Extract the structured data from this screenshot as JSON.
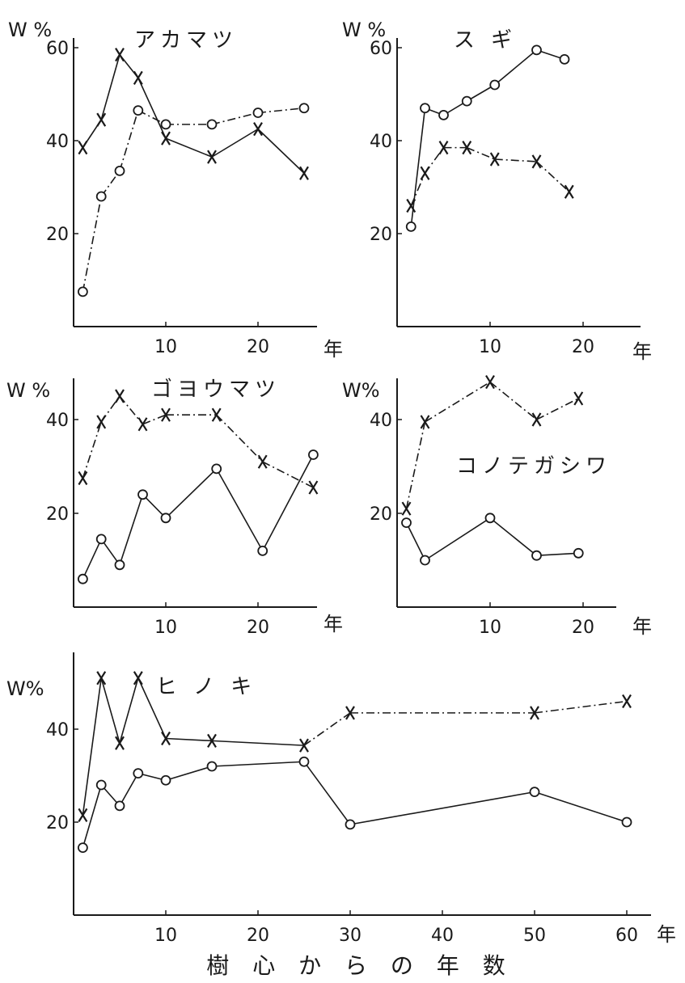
{
  "figure": {
    "xlabel": "樹 心 か ら の 年 数",
    "line_color": "#1a1a1a",
    "background": "#ffffff"
  },
  "chart_data": [
    {
      "type": "line",
      "title": "アカマツ",
      "ylabel": "W %",
      "x_unit": "年",
      "xlim": [
        0,
        28
      ],
      "ylim": [
        0,
        62
      ],
      "xticks": [
        10,
        20
      ],
      "yticks": [
        20,
        40,
        60
      ],
      "series": [
        {
          "marker": "x",
          "line": "solid",
          "x": [
            1,
            3,
            5,
            7,
            10,
            15,
            20,
            25
          ],
          "y": [
            38.5,
            44.5,
            58.5,
            53.5,
            40.5,
            36.5,
            42.5,
            33
          ]
        },
        {
          "marker": "o",
          "line": "dashdot",
          "x": [
            1,
            3,
            5,
            7,
            10,
            15,
            20,
            25
          ],
          "y": [
            7.5,
            28,
            33.5,
            46.5,
            43.5,
            43.5,
            46,
            47
          ]
        }
      ]
    },
    {
      "type": "line",
      "title": "ス ギ",
      "ylabel": "W %",
      "x_unit": "年",
      "xlim": [
        0,
        28
      ],
      "ylim": [
        0,
        62
      ],
      "xticks": [
        10,
        20
      ],
      "yticks": [
        20,
        40,
        60
      ],
      "series": [
        {
          "marker": "o",
          "line": "solid",
          "x": [
            1.5,
            3,
            5,
            7.5,
            10.5,
            15,
            18
          ],
          "y": [
            21.5,
            47,
            45.5,
            48.5,
            52,
            59.5,
            57.5
          ]
        },
        {
          "marker": "x",
          "line": "dashdot",
          "x": [
            1.5,
            3,
            5,
            7.5,
            10.5,
            15,
            18.5
          ],
          "y": [
            26,
            33,
            38.5,
            38.5,
            36,
            35.5,
            29
          ]
        }
      ]
    },
    {
      "type": "line",
      "title": "ゴヨウマツ",
      "ylabel": "W %",
      "x_unit": "年",
      "xlim": [
        0,
        28
      ],
      "ylim": [
        0,
        49
      ],
      "xticks": [
        10,
        20
      ],
      "yticks": [
        20,
        40
      ],
      "series": [
        {
          "marker": "x",
          "line": "dashdot",
          "x": [
            1,
            3,
            5,
            7.5,
            10,
            15.5,
            20.5,
            26
          ],
          "y": [
            27.5,
            39.5,
            45,
            39,
            41,
            41,
            31,
            25.5
          ]
        },
        {
          "marker": "o",
          "line": "solid",
          "x": [
            1,
            3,
            5,
            7.5,
            10,
            15.5,
            20.5,
            26
          ],
          "y": [
            6,
            14.5,
            9,
            24,
            19,
            29.5,
            12,
            32.5
          ]
        }
      ]
    },
    {
      "type": "line",
      "title": "コノテガシワ",
      "ylabel": "W%",
      "x_unit": "年",
      "xlim": [
        0,
        25
      ],
      "ylim": [
        0,
        49
      ],
      "xticks": [
        10,
        20
      ],
      "yticks": [
        20,
        40
      ],
      "series": [
        {
          "marker": "x",
          "line": "dashdot",
          "x": [
            1,
            3,
            10,
            15,
            19.5
          ],
          "y": [
            21,
            39.5,
            48,
            40,
            44.5
          ]
        },
        {
          "marker": "o",
          "line": "solid",
          "x": [
            1,
            3,
            10,
            15,
            19.5
          ],
          "y": [
            18,
            10,
            19,
            11,
            11.5
          ]
        }
      ]
    },
    {
      "type": "line",
      "title": "ヒ ノ キ",
      "ylabel": "W%",
      "x_unit": "年",
      "xlim": [
        0,
        63
      ],
      "ylim": [
        0,
        56
      ],
      "xticks": [
        10,
        20,
        30,
        40,
        50,
        60
      ],
      "yticks": [
        20,
        40
      ],
      "series": [
        {
          "marker": "x",
          "line": "mixed",
          "x": [
            1,
            3,
            5,
            7,
            10,
            15,
            25,
            30,
            50,
            60
          ],
          "y": [
            21.5,
            51,
            37,
            51,
            38,
            37.5,
            36.5,
            43.5,
            43.5,
            46
          ]
        },
        {
          "marker": "o",
          "line": "solid",
          "x": [
            1,
            3,
            5,
            7,
            10,
            15,
            25,
            30,
            50,
            60
          ],
          "y": [
            14.5,
            28,
            23.5,
            30.5,
            29,
            32,
            33,
            19.5,
            26.5,
            20
          ]
        }
      ]
    }
  ]
}
